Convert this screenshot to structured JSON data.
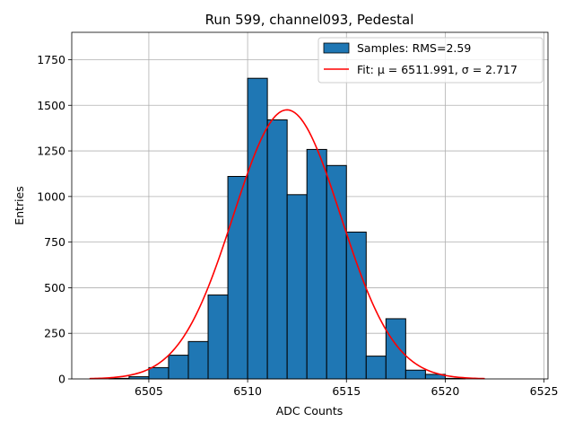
{
  "chart_data": {
    "type": "bar",
    "title": "Run 599, channel093, Pedestal",
    "xlabel": "ADC Counts",
    "ylabel": "Entries",
    "xlim": [
      6501.1,
      6525.2
    ],
    "ylim": [
      0,
      1900
    ],
    "xticks": [
      6505,
      6510,
      6515,
      6520,
      6525
    ],
    "yticks": [
      0,
      250,
      500,
      750,
      1000,
      1250,
      1500,
      1750
    ],
    "grid": true,
    "legend_position": "top-right",
    "bin_width": 1,
    "histogram": {
      "name": "Samples: RMS=2.59",
      "color": "#1f77b4",
      "bins": [
        {
          "x": 6503,
          "value": 3
        },
        {
          "x": 6504,
          "value": 12
        },
        {
          "x": 6505,
          "value": 62
        },
        {
          "x": 6506,
          "value": 130
        },
        {
          "x": 6507,
          "value": 205
        },
        {
          "x": 6508,
          "value": 460
        },
        {
          "x": 6509,
          "value": 1110
        },
        {
          "x": 6510,
          "value": 1648
        },
        {
          "x": 6511,
          "value": 1420
        },
        {
          "x": 6512,
          "value": 1010
        },
        {
          "x": 6513,
          "value": 1258
        },
        {
          "x": 6514,
          "value": 1170
        },
        {
          "x": 6515,
          "value": 805
        },
        {
          "x": 6516,
          "value": 125
        },
        {
          "x": 6517,
          "value": 330
        },
        {
          "x": 6518,
          "value": 48
        },
        {
          "x": 6519,
          "value": 25
        },
        {
          "x": 6520,
          "value": 3
        }
      ]
    },
    "fit": {
      "name": "Fit: μ = 6511.991, σ = 2.717",
      "color": "#ff0000",
      "mu": 6511.991,
      "sigma": 2.717,
      "amplitude": 1475,
      "x_range": [
        6502,
        6522
      ]
    }
  }
}
